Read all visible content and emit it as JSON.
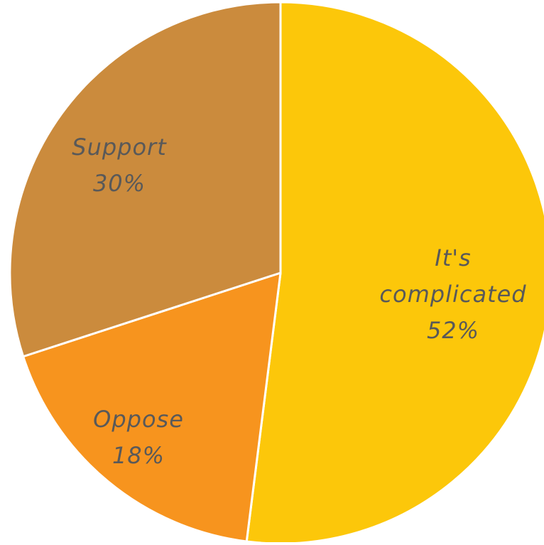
{
  "chart_data": {
    "type": "pie",
    "slices": [
      {
        "label_lines": [
          "It's",
          "complicated"
        ],
        "value_label": "52%",
        "value": 52,
        "color": "#FCC70A"
      },
      {
        "label_lines": [
          "Oppose"
        ],
        "value_label": "18%",
        "value": 18,
        "color": "#F7941E"
      },
      {
        "label_lines": [
          "Support"
        ],
        "value_label": "30%",
        "value": 30,
        "color": "#CB8B3D"
      }
    ],
    "start_angle_deg": 0,
    "direction": "clockwise",
    "label_color": "#595959",
    "border_color": "#ffffff"
  }
}
